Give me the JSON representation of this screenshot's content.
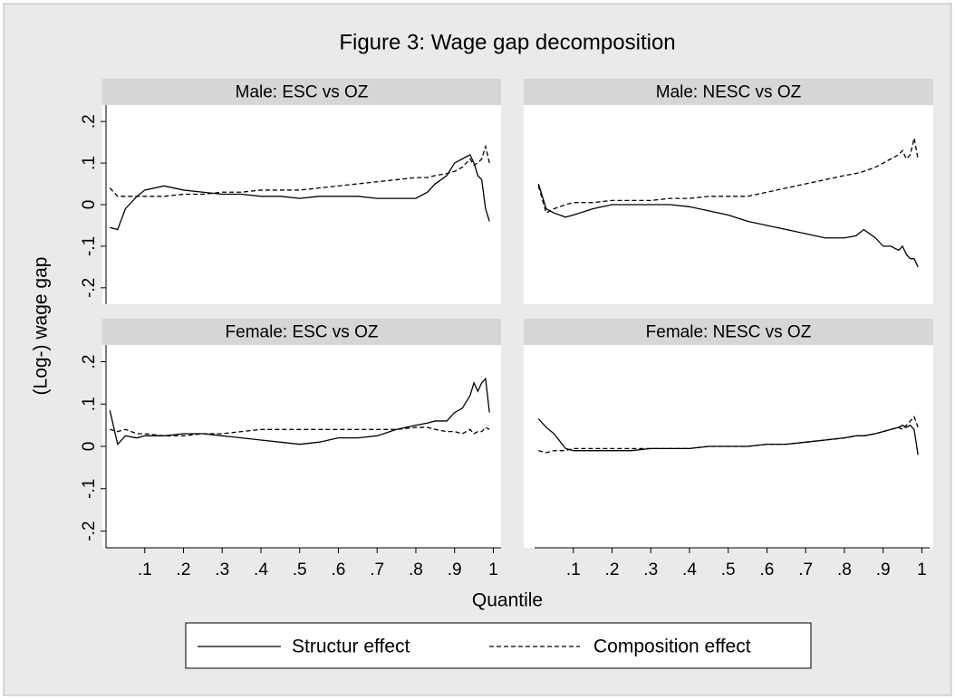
{
  "figure": {
    "title": "Figure 3: Wage gap decomposition",
    "xlabel": "Quantile",
    "ylabel": "(Log-) wage gap"
  },
  "chart_data": [
    {
      "type": "line",
      "title": "Male: ESC vs OZ",
      "x": [
        0.01,
        0.03,
        0.05,
        0.08,
        0.1,
        0.15,
        0.2,
        0.25,
        0.3,
        0.35,
        0.4,
        0.45,
        0.5,
        0.55,
        0.6,
        0.65,
        0.7,
        0.75,
        0.8,
        0.83,
        0.85,
        0.88,
        0.9,
        0.92,
        0.94,
        0.95,
        0.96,
        0.97,
        0.98,
        0.99
      ],
      "xlim": [
        0,
        1.02
      ],
      "ylim": [
        -0.23,
        0.23
      ],
      "yticks": [
        {
          "value": -0.2,
          "label": "-.2"
        },
        {
          "value": -0.1,
          "label": "-.1"
        },
        0,
        {
          "value": 0.1,
          "label": ".1"
        },
        {
          "value": 0.2,
          "label": ".2"
        }
      ],
      "series": [
        {
          "name": "Structur effect",
          "color": "#000000",
          "style": "solid",
          "values": [
            -0.055,
            -0.06,
            -0.01,
            0.02,
            0.035,
            0.045,
            0.035,
            0.03,
            0.025,
            0.025,
            0.02,
            0.02,
            0.015,
            0.02,
            0.02,
            0.02,
            0.015,
            0.015,
            0.015,
            0.03,
            0.05,
            0.07,
            0.1,
            0.11,
            0.12,
            0.1,
            0.07,
            0.06,
            -0.01,
            -0.04
          ]
        },
        {
          "name": "Composition effect",
          "color": "#000000",
          "style": "dashed",
          "values": [
            0.04,
            0.02,
            0.02,
            0.02,
            0.02,
            0.02,
            0.025,
            0.025,
            0.03,
            0.03,
            0.035,
            0.035,
            0.035,
            0.04,
            0.045,
            0.05,
            0.055,
            0.06,
            0.065,
            0.065,
            0.07,
            0.075,
            0.08,
            0.09,
            0.11,
            0.095,
            0.1,
            0.11,
            0.14,
            0.1
          ]
        }
      ]
    },
    {
      "type": "line",
      "title": "Male: NESC vs OZ",
      "x": [
        0.01,
        0.03,
        0.05,
        0.08,
        0.1,
        0.15,
        0.2,
        0.25,
        0.3,
        0.35,
        0.4,
        0.45,
        0.5,
        0.55,
        0.6,
        0.65,
        0.7,
        0.75,
        0.8,
        0.83,
        0.85,
        0.88,
        0.9,
        0.92,
        0.94,
        0.95,
        0.96,
        0.97,
        0.98,
        0.99
      ],
      "xlim": [
        0,
        1.02
      ],
      "ylim": [
        -0.23,
        0.23
      ],
      "series": [
        {
          "name": "Structur effect",
          "color": "#000000",
          "style": "solid",
          "values": [
            0.05,
            -0.01,
            -0.02,
            -0.03,
            -0.025,
            -0.01,
            0,
            0,
            0,
            0,
            -0.005,
            -0.015,
            -0.025,
            -0.04,
            -0.05,
            -0.06,
            -0.07,
            -0.08,
            -0.08,
            -0.075,
            -0.06,
            -0.08,
            -0.1,
            -0.1,
            -0.11,
            -0.1,
            -0.12,
            -0.13,
            -0.13,
            -0.15
          ]
        },
        {
          "name": "Composition effect",
          "color": "#000000",
          "style": "dashed",
          "values": [
            0.045,
            -0.02,
            -0.01,
            0,
            0.005,
            0.005,
            0.01,
            0.01,
            0.01,
            0.015,
            0.015,
            0.02,
            0.02,
            0.02,
            0.03,
            0.04,
            0.05,
            0.06,
            0.07,
            0.075,
            0.08,
            0.09,
            0.1,
            0.11,
            0.12,
            0.13,
            0.11,
            0.12,
            0.16,
            0.11
          ]
        }
      ]
    },
    {
      "type": "line",
      "title": "Female: ESC vs OZ",
      "x": [
        0.01,
        0.03,
        0.05,
        0.08,
        0.1,
        0.15,
        0.2,
        0.25,
        0.3,
        0.35,
        0.4,
        0.45,
        0.5,
        0.55,
        0.6,
        0.65,
        0.7,
        0.75,
        0.8,
        0.83,
        0.85,
        0.88,
        0.9,
        0.92,
        0.94,
        0.95,
        0.96,
        0.97,
        0.98,
        0.99
      ],
      "xlim": [
        0,
        1.02
      ],
      "ylim": [
        -0.23,
        0.23
      ],
      "xticks": [
        {
          "value": 0.1,
          "label": ".1"
        },
        {
          "value": 0.2,
          "label": ".2"
        },
        {
          "value": 0.3,
          "label": ".3"
        },
        {
          "value": 0.4,
          "label": ".4"
        },
        {
          "value": 0.5,
          "label": ".5"
        },
        {
          "value": 0.6,
          "label": ".6"
        },
        {
          "value": 0.7,
          "label": ".7"
        },
        {
          "value": 0.8,
          "label": ".8"
        },
        {
          "value": 0.9,
          "label": ".9"
        },
        1
      ],
      "yticks": [
        {
          "value": -0.2,
          "label": "-.2"
        },
        {
          "value": -0.1,
          "label": "-.1"
        },
        0,
        {
          "value": 0.1,
          "label": ".1"
        },
        {
          "value": 0.2,
          "label": ".2"
        }
      ],
      "series": [
        {
          "name": "Structur effect",
          "color": "#000000",
          "style": "solid",
          "values": [
            0.085,
            0.005,
            0.025,
            0.02,
            0.025,
            0.025,
            0.03,
            0.03,
            0.025,
            0.02,
            0.015,
            0.01,
            0.005,
            0.01,
            0.02,
            0.02,
            0.025,
            0.04,
            0.05,
            0.055,
            0.06,
            0.06,
            0.08,
            0.09,
            0.12,
            0.15,
            0.13,
            0.15,
            0.16,
            0.08
          ]
        },
        {
          "name": "Composition effect",
          "color": "#000000",
          "style": "dashed",
          "values": [
            0.04,
            0.035,
            0.04,
            0.03,
            0.03,
            0.025,
            0.025,
            0.03,
            0.03,
            0.035,
            0.04,
            0.04,
            0.04,
            0.04,
            0.04,
            0.04,
            0.04,
            0.04,
            0.045,
            0.045,
            0.04,
            0.035,
            0.035,
            0.03,
            0.04,
            0.03,
            0.035,
            0.035,
            0.045,
            0.04
          ]
        }
      ]
    },
    {
      "type": "line",
      "title": "Female: NESC vs OZ",
      "x": [
        0.01,
        0.03,
        0.05,
        0.08,
        0.1,
        0.15,
        0.2,
        0.25,
        0.3,
        0.35,
        0.4,
        0.45,
        0.5,
        0.55,
        0.6,
        0.65,
        0.7,
        0.75,
        0.8,
        0.83,
        0.85,
        0.88,
        0.9,
        0.92,
        0.94,
        0.95,
        0.96,
        0.97,
        0.98,
        0.99
      ],
      "xlim": [
        0,
        1.02
      ],
      "ylim": [
        -0.23,
        0.23
      ],
      "xticks": [
        {
          "value": 0.1,
          "label": ".1"
        },
        {
          "value": 0.2,
          "label": ".2"
        },
        {
          "value": 0.3,
          "label": ".3"
        },
        {
          "value": 0.4,
          "label": ".4"
        },
        {
          "value": 0.5,
          "label": ".5"
        },
        {
          "value": 0.6,
          "label": ".6"
        },
        {
          "value": 0.7,
          "label": ".7"
        },
        {
          "value": 0.8,
          "label": ".8"
        },
        {
          "value": 0.9,
          "label": ".9"
        },
        1
      ],
      "series": [
        {
          "name": "Structur effect",
          "color": "#000000",
          "style": "solid",
          "values": [
            0.065,
            0.045,
            0.03,
            -0.005,
            -0.01,
            -0.01,
            -0.01,
            -0.01,
            -0.005,
            -0.005,
            -0.005,
            0,
            0,
            0,
            0.005,
            0.005,
            0.01,
            0.015,
            0.02,
            0.025,
            0.025,
            0.03,
            0.035,
            0.04,
            0.045,
            0.05,
            0.045,
            0.05,
            0.04,
            -0.02
          ]
        },
        {
          "name": "Composition effect",
          "color": "#000000",
          "style": "dashed",
          "values": [
            -0.01,
            -0.015,
            -0.01,
            -0.01,
            -0.005,
            -0.005,
            -0.005,
            -0.005,
            -0.005,
            -0.005,
            -0.005,
            0,
            0,
            0,
            0.005,
            0.005,
            0.01,
            0.015,
            0.02,
            0.025,
            0.025,
            0.03,
            0.035,
            0.04,
            0.045,
            0.04,
            0.05,
            0.06,
            0.07,
            0.045
          ]
        }
      ]
    }
  ]
}
